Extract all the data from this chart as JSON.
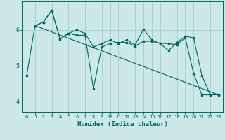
{
  "background_color": "#cce8e8",
  "grid_color": "#aacccc",
  "line_color": "#006666",
  "xlabel": "Humidex (Indice chaleur)",
  "xlim": [
    -0.5,
    23.5
  ],
  "ylim": [
    3.7,
    6.8
  ],
  "yticks": [
    4,
    5,
    6
  ],
  "xticks": [
    0,
    1,
    2,
    3,
    4,
    5,
    6,
    7,
    8,
    9,
    10,
    11,
    12,
    13,
    14,
    15,
    16,
    17,
    18,
    19,
    20,
    21,
    22,
    23
  ],
  "line1_x": [
    0,
    1,
    2,
    3,
    4,
    5,
    6,
    7,
    8,
    9,
    10,
    11,
    12,
    13,
    14,
    15,
    16,
    17,
    18,
    19,
    20,
    21,
    22,
    23
  ],
  "line1_y": [
    4.72,
    6.12,
    6.22,
    6.55,
    5.75,
    5.9,
    6.0,
    5.9,
    5.52,
    5.62,
    5.72,
    5.62,
    5.72,
    5.58,
    6.02,
    5.72,
    5.62,
    5.62,
    5.58,
    5.78,
    4.78,
    4.18,
    4.18,
    4.18
  ],
  "line2_x": [
    1,
    2,
    3,
    4,
    5,
    6,
    7,
    8,
    9,
    10,
    11,
    12,
    13,
    14,
    15,
    16,
    17,
    18,
    19,
    20,
    21,
    22,
    23
  ],
  "line2_y": [
    6.12,
    6.22,
    6.55,
    5.75,
    5.9,
    5.85,
    5.85,
    4.35,
    5.52,
    5.62,
    5.65,
    5.65,
    5.55,
    5.68,
    5.68,
    5.62,
    5.42,
    5.65,
    5.82,
    5.78,
    4.72,
    4.18,
    4.2
  ],
  "line3_x": [
    1,
    23
  ],
  "line3_y": [
    6.12,
    4.18
  ]
}
